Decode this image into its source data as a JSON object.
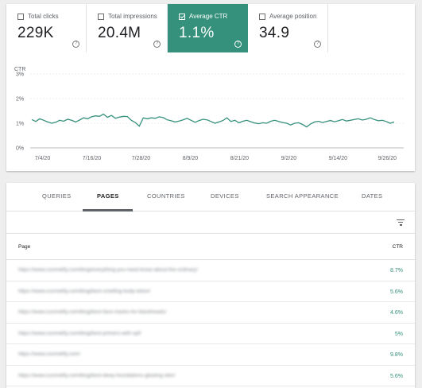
{
  "metrics": [
    {
      "label": "Total clicks",
      "value": "229K",
      "checked": false,
      "active": false
    },
    {
      "label": "Total impressions",
      "value": "20.4M",
      "checked": false,
      "active": false
    },
    {
      "label": "Average CTR",
      "value": "1.1%",
      "checked": true,
      "active": true
    },
    {
      "label": "Average position",
      "value": "34.9",
      "checked": false,
      "active": false
    }
  ],
  "help_glyph": "?",
  "chart_data": {
    "type": "line",
    "ylabel": "CTR",
    "y_ticks": [
      "3%",
      "2%",
      "1%",
      "0%"
    ],
    "ylim": [
      0,
      3
    ],
    "x_ticks": [
      "7/4/20",
      "7/16/20",
      "7/28/20",
      "8/9/20",
      "8/21/20",
      "9/2/20",
      "9/14/20",
      "9/26/20"
    ],
    "x_start": "7/1/20",
    "x_end": "9/30/20",
    "grid": true,
    "color": "#35917c",
    "series": [
      {
        "values": [
          1.15,
          1.07,
          1.18,
          1.12,
          1.05,
          1.0,
          1.04,
          1.12,
          1.08,
          1.16,
          1.12,
          1.05,
          1.13,
          1.22,
          1.18,
          1.26,
          1.3,
          1.28,
          1.37,
          1.24,
          1.32,
          1.2,
          1.25,
          1.28,
          1.27,
          1.12,
          1.03,
          0.88,
          1.22,
          1.18,
          1.22,
          1.2,
          1.26,
          1.23,
          1.14,
          1.1,
          1.05,
          1.09,
          1.14,
          1.2,
          1.12,
          1.04,
          1.11,
          1.16,
          1.14,
          1.07,
          1.0,
          1.05,
          1.11,
          1.22,
          1.07,
          1.12,
          1.02,
          1.08,
          1.12,
          1.06,
          1.01,
          0.98,
          1.02,
          1.0,
          1.08,
          1.12,
          1.07,
          1.03,
          1.0,
          0.93,
          1.0,
          1.02,
          0.95,
          0.85,
          0.97,
          1.05,
          1.08,
          1.03,
          1.07,
          1.11,
          1.06,
          1.1,
          1.15,
          1.09,
          1.12,
          1.15,
          1.18,
          1.13,
          1.16,
          1.22,
          1.15,
          1.1,
          1.12,
          1.07,
          1.0,
          1.05
        ]
      }
    ]
  },
  "tabs": [
    {
      "label": "QUERIES",
      "active": false
    },
    {
      "label": "PAGES",
      "active": true
    },
    {
      "label": "COUNTRIES",
      "active": false
    },
    {
      "label": "DEVICES",
      "active": false
    },
    {
      "label": "SEARCH APPEARANCE",
      "active": false
    },
    {
      "label": "DATES",
      "active": false
    }
  ],
  "table": {
    "col_page": "Page",
    "col_ctr": "CTR",
    "rows": [
      {
        "url": "https://www.cosmetify.com/blog/everything-you-need-know-about-the-ordinary/",
        "ctr": "8.7%"
      },
      {
        "url": "https://www.cosmetify.com/blog/best-smelling-body-lotion/",
        "ctr": "5.6%"
      },
      {
        "url": "https://www.cosmetify.com/blog/best-face-masks-for-blackheads/",
        "ctr": "4.6%"
      },
      {
        "url": "https://www.cosmetify.com/blog/best-primers-with-spf/",
        "ctr": "5%"
      },
      {
        "url": "https://www.cosmetify.com/",
        "ctr": "9.8%"
      },
      {
        "url": "https://www.cosmetify.com/blog/best-dewy-foundations-glowing-skin/",
        "ctr": "5.6%"
      }
    ]
  }
}
